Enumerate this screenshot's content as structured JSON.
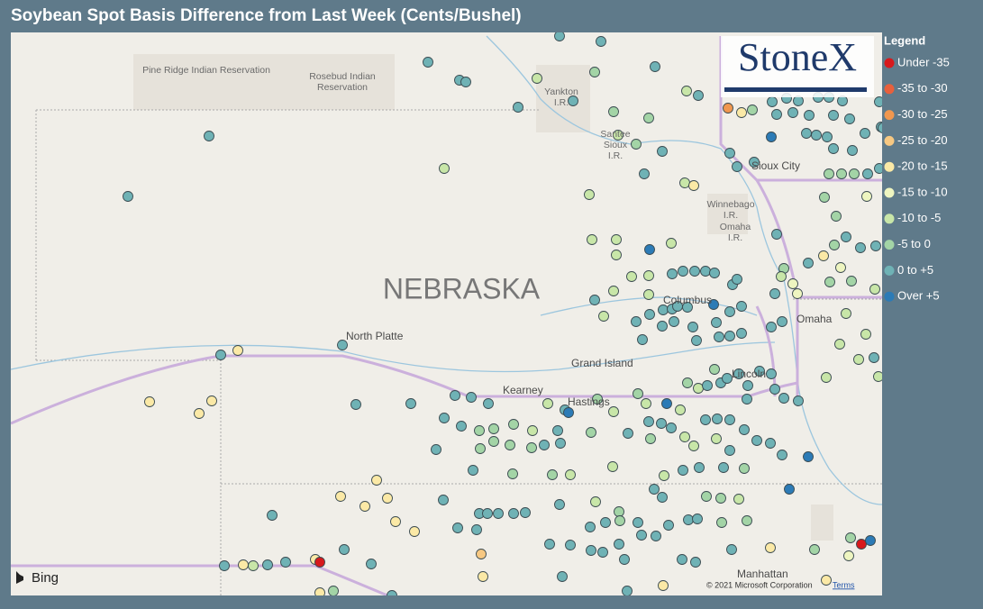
{
  "header": {
    "title": "Soybean Spot Basis Difference from Last Week (Cents/Bushel)"
  },
  "legend": {
    "title": "Legend",
    "items": [
      {
        "name": "Under -35",
        "color": "#d7191c"
      },
      {
        "name": "-35 to -30",
        "color": "#e8603c"
      },
      {
        "name": "-30 to -25",
        "color": "#f0974f"
      },
      {
        "name": "-25 to -20",
        "color": "#f7c882"
      },
      {
        "name": "-20 to -15",
        "color": "#fbe9a6"
      },
      {
        "name": "-15 to -10",
        "color": "#eef5c0"
      },
      {
        "name": "-10 to -5",
        "color": "#c8e6a8"
      },
      {
        "name": "-5 to 0",
        "color": "#a3d4a6"
      },
      {
        "name": "0 to +5",
        "color": "#6fb2b5"
      },
      {
        "name": "Over +5",
        "color": "#2c7bb6"
      }
    ]
  },
  "map": {
    "labels": {
      "pine_ridge": "Pine Ridge Indian Reservation",
      "rosebud_1": "Rosebud Indian",
      "rosebud_2": "Reservation",
      "yankton_1": "Yankton",
      "yankton_2": "I.R.",
      "santee_1": "Santee",
      "santee_2": "Sioux",
      "santee_3": "I.R.",
      "sioux_city": "Sioux City",
      "winnebago_1": "Winnebago",
      "winnebago_2": "I.R.",
      "winnebago_3": "Omaha",
      "winnebago_4": "I.R.",
      "state": "NEBRASKA",
      "columbus": "Columbus",
      "omaha": "Omaha",
      "north_platte": "North Platte",
      "grand_island": "Grand Island",
      "kearney": "Kearney",
      "hastings": "Hastings",
      "lincoln": "Lincoln",
      "manhattan": "Manhattan"
    },
    "logo": "StoneX",
    "provider": "Bing",
    "copyright": "© 2021 Microsoft Corporation",
    "terms": "Terms"
  }
}
